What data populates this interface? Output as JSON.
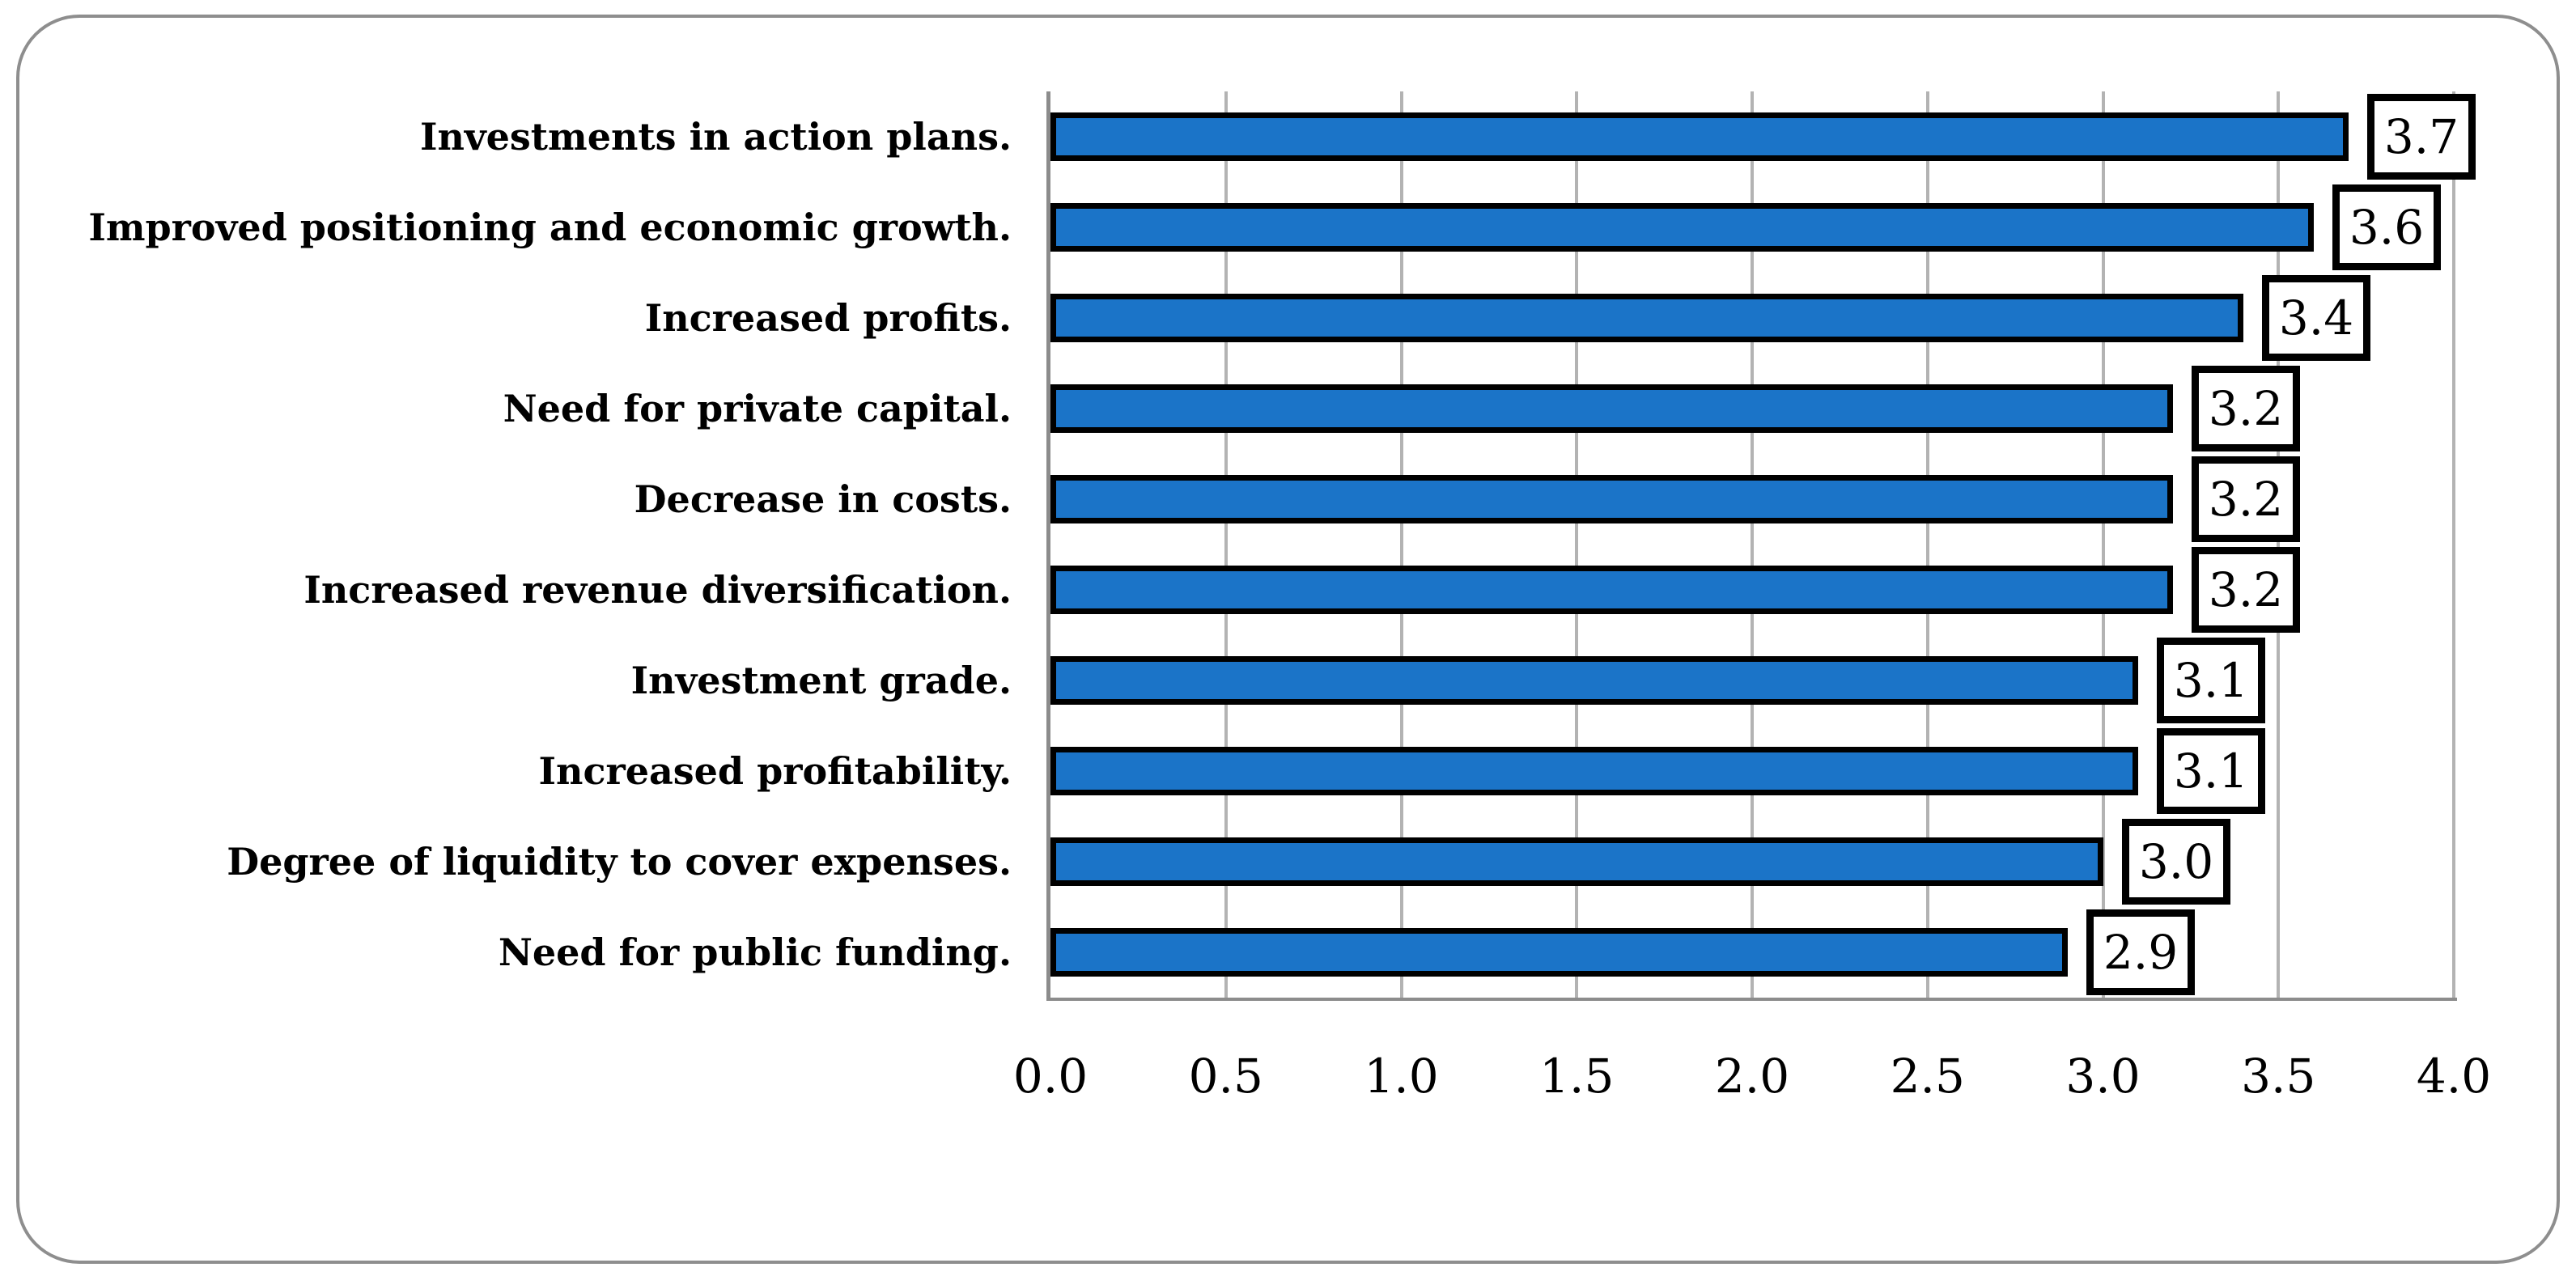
{
  "figure": {
    "background_color": "#FFFFFF",
    "frame_border_color": "#8E8E8E"
  },
  "chart_data": {
    "type": "bar",
    "orientation": "horizontal",
    "title": "",
    "xlabel": "",
    "ylabel": "",
    "categories": [
      "Investments in action plans.",
      "Improved positioning and economic growth.",
      "Increased profits.",
      "Need for private capital.",
      "Decrease in costs.",
      "Increased revenue diversification.",
      "Investment grade.",
      "Increased profitability.",
      "Degree of liquidity to cover expenses.",
      "Need for public funding."
    ],
    "values": [
      3.7,
      3.6,
      3.4,
      3.2,
      3.2,
      3.2,
      3.1,
      3.1,
      3.0,
      2.9
    ],
    "value_labels": [
      "3.7",
      "3.6",
      "3.4",
      "3.2",
      "3.2",
      "3.2",
      "3.1",
      "3.1",
      "3.0",
      "2.9"
    ],
    "xlim": [
      0.0,
      4.0
    ],
    "xtick_step": 0.5,
    "xtick_labels": [
      "0.0",
      "0.5",
      "1.0",
      "1.5",
      "2.0",
      "2.5",
      "3.0",
      "3.5",
      "4.0"
    ],
    "grid": "vertical-only",
    "legend": "none",
    "colors": {
      "bar_fill": "#1B74C8",
      "bar_border": "#000000",
      "value_box_fill": "#FFFFFF",
      "value_box_border": "#000000",
      "gridline": "#B3B3B3",
      "axis_line": "#8C8C8C",
      "label_text": "#000000"
    }
  }
}
